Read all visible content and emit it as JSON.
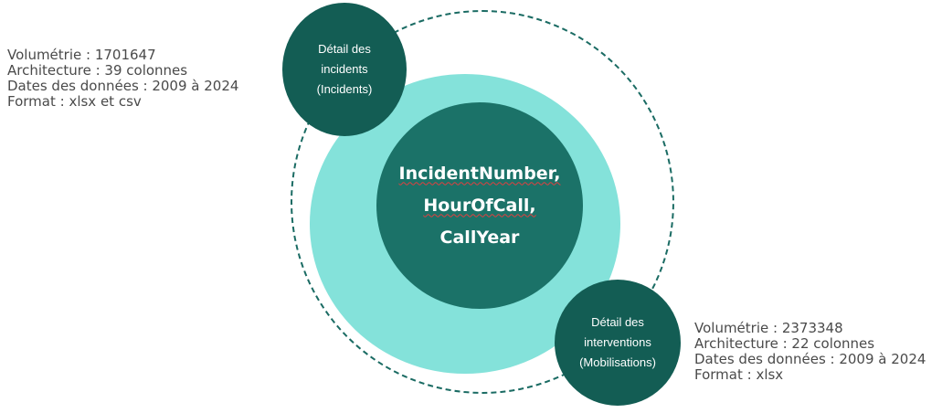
{
  "left_info": {
    "lines": [
      "Volumétrie : 1701647",
      "Architecture : 39 colonnes",
      "Dates des données : 2009 à 2024",
      "Format : xlsx et csv"
    ]
  },
  "right_info": {
    "lines": [
      "Volumétrie : 2373348",
      "Architecture : 22 colonnes",
      "Dates des données : 2009 à 2024",
      "Format : xlsx"
    ]
  },
  "center": {
    "lines": [
      "IncidentNumber,",
      "HourOfCall,",
      "CallYear"
    ]
  },
  "node_incidents": {
    "lines": [
      "Détail des",
      "incidents",
      "(Incidents)"
    ]
  },
  "node_interventions": {
    "lines": [
      "Détail des",
      "interventions",
      "(Mobilisations)"
    ]
  },
  "colors": {
    "dark_teal": "#135d54",
    "center_teal": "#1b7268",
    "light_teal": "#84e2da",
    "text_gray": "#4a4a4a"
  }
}
